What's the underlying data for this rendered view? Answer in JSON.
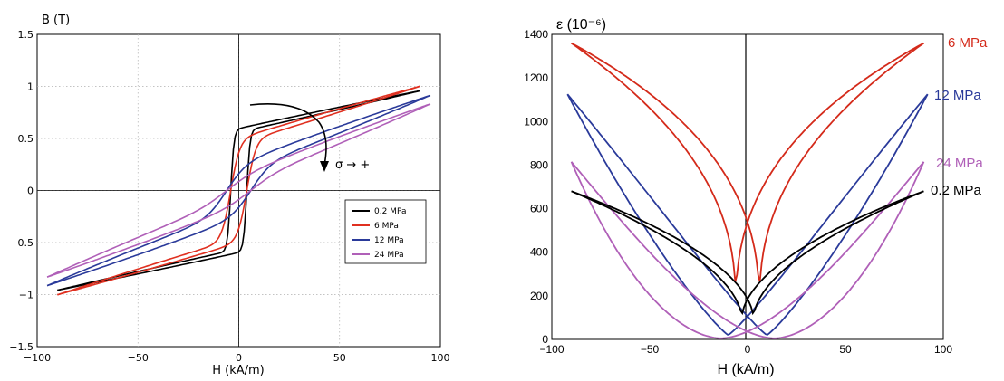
{
  "chart_data": [
    {
      "type": "line",
      "ylabel": "B (T)",
      "xlabel": "H (kA/m)",
      "xlim": [
        -100,
        100
      ],
      "ylim": [
        -1.5,
        1.5
      ],
      "xticks": [
        "−100",
        "−50",
        "0",
        "50",
        "100"
      ],
      "yticks": [
        "1.5",
        "1",
        "0.5",
        "0",
        "−0.5",
        "−1",
        "−1.5"
      ],
      "grid": true,
      "legend_position": "center-right",
      "annotation": "σ → +",
      "series": [
        {
          "name": "0.2 MPa",
          "color": "#000000",
          "x_max": 90,
          "hysteresis": 4,
          "b_max": 1.01,
          "points": [
            [
              -90,
              -1.01
            ],
            [
              -40,
              -0.82
            ],
            [
              -15,
              -0.74
            ],
            [
              -5,
              -0.62
            ],
            [
              0,
              -0.05
            ],
            [
              5,
              0.62
            ],
            [
              15,
              0.74
            ],
            [
              40,
              0.82
            ],
            [
              90,
              1.01
            ]
          ]
        },
        {
          "name": "6 MPa",
          "color": "#e03020",
          "x_max": 90,
          "hysteresis": 4,
          "b_max": 1.0,
          "points": [
            [
              -90,
              -1.0
            ],
            [
              -40,
              -0.78
            ],
            [
              -15,
              -0.6
            ],
            [
              -5,
              -0.35
            ],
            [
              0,
              0.0
            ],
            [
              5,
              0.35
            ],
            [
              15,
              0.6
            ],
            [
              40,
              0.78
            ],
            [
              90,
              1.0
            ]
          ]
        },
        {
          "name": "12 MPa",
          "color": "#2a3a9a",
          "x_max": 95,
          "hysteresis": 6,
          "b_max": 0.92,
          "points": [
            [
              -95,
              -0.92
            ],
            [
              -50,
              -0.6
            ],
            [
              -20,
              -0.28
            ],
            [
              0,
              0.0
            ],
            [
              20,
              0.28
            ],
            [
              50,
              0.6
            ],
            [
              95,
              0.92
            ]
          ]
        },
        {
          "name": "24 MPa",
          "color": "#b060b8",
          "x_max": 95,
          "hysteresis": 6,
          "b_max": 0.83,
          "points": [
            [
              -95,
              -0.83
            ],
            [
              -50,
              -0.42
            ],
            [
              -20,
              -0.15
            ],
            [
              0,
              0.0
            ],
            [
              20,
              0.15
            ],
            [
              50,
              0.42
            ],
            [
              95,
              0.83
            ]
          ]
        }
      ]
    },
    {
      "type": "line",
      "ylabel": "ε (10⁻⁶)",
      "xlabel": "H (kA/m)",
      "xlim": [
        -100,
        100
      ],
      "ylim": [
        0,
        1400
      ],
      "xticks": [
        "−100",
        "−50",
        "0",
        "50",
        "100"
      ],
      "yticks": [
        "1400",
        "1200",
        "1000",
        "800",
        "600",
        "400",
        "200",
        "0"
      ],
      "grid": false,
      "series": [
        {
          "name": "6 MPa",
          "color": "#d42a1a",
          "x_max": 90,
          "eps_max": 1360,
          "eps_min": 150,
          "points": [
            [
              -90,
              1360
            ],
            [
              -40,
              1050
            ],
            [
              -15,
              700
            ],
            [
              0,
              150
            ],
            [
              15,
              700
            ],
            [
              40,
              1050
            ],
            [
              90,
              1360
            ]
          ]
        },
        {
          "name": "12 MPa",
          "color": "#2a3a9a",
          "x_max": 92,
          "eps_max": 1125,
          "eps_min": 20,
          "points": [
            [
              -92,
              1125
            ],
            [
              -50,
              720
            ],
            [
              -20,
              300
            ],
            [
              0,
              20
            ],
            [
              20,
              300
            ],
            [
              50,
              720
            ],
            [
              92,
              1125
            ]
          ]
        },
        {
          "name": "24 MPa",
          "color": "#b060b8",
          "x_max": 90,
          "eps_max": 815,
          "eps_min": 5,
          "points": [
            [
              -90,
              815
            ],
            [
              -50,
              350
            ],
            [
              -20,
              80
            ],
            [
              0,
              5
            ],
            [
              20,
              80
            ],
            [
              50,
              350
            ],
            [
              90,
              815
            ]
          ]
        },
        {
          "name": "0.2 MPa",
          "color": "#000000",
          "x_max": 90,
          "eps_max": 680,
          "eps_min": 95,
          "points": [
            [
              -90,
              680
            ],
            [
              -50,
              520
            ],
            [
              -20,
              330
            ],
            [
              0,
              95
            ],
            [
              20,
              330
            ],
            [
              50,
              520
            ],
            [
              90,
              680
            ]
          ]
        }
      ]
    }
  ]
}
